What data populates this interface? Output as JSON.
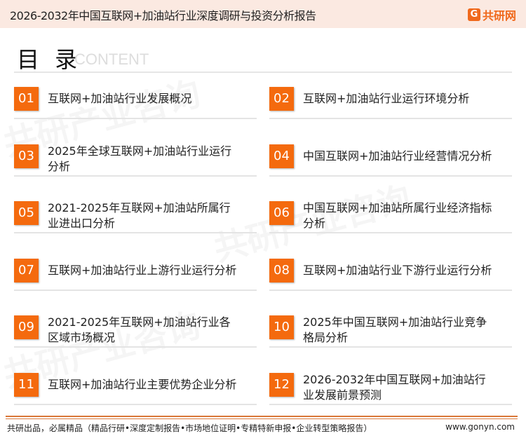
{
  "header": {
    "title": "2026-2032年中国互联网+加油站行业深度调研与投资分析报告",
    "logo_text": "共研网",
    "logo_mark": "G"
  },
  "toc": {
    "title": "目 录",
    "subtitle": "CONTENT"
  },
  "items": [
    {
      "num": "01",
      "label": "互联网+加油站行业发展概况"
    },
    {
      "num": "02",
      "label": "互联网+加油站行业运行环境分析"
    },
    {
      "num": "03",
      "label": "2025年全球互联网+加油站行业运行分析"
    },
    {
      "num": "04",
      "label": "中国互联网+加油站行业经营情况分析"
    },
    {
      "num": "05",
      "label": "2021-2025年互联网+加油站所属行业进出口分析"
    },
    {
      "num": "06",
      "label": "中国互联网+加油站所属行业经济指标分析"
    },
    {
      "num": "07",
      "label": "互联网+加油站行业上游行业运行分析"
    },
    {
      "num": "08",
      "label": "互联网+加油站行业下游行业运行分析"
    },
    {
      "num": "09",
      "label": "2021-2025年互联网+加油站行业各区域市场概况"
    },
    {
      "num": "10",
      "label": "2025年中国互联网+加油站行业竞争格局分析"
    },
    {
      "num": "11",
      "label": "互联网+加油站行业主要优势企业分析"
    },
    {
      "num": "12",
      "label": "2026-2032年中国互联网+加油站行业发展前景预测"
    }
  ],
  "footer": {
    "slogan": "共研出品，必属精品（精品行研•深度定制报告•市场地位证明•专精特新申报•企业转型策略报告）",
    "website": "www.gonyn.com"
  },
  "colors": {
    "accent": "#f46a0e",
    "header_bg": "#fbe9e1",
    "footer_rule": "#d9783a"
  }
}
